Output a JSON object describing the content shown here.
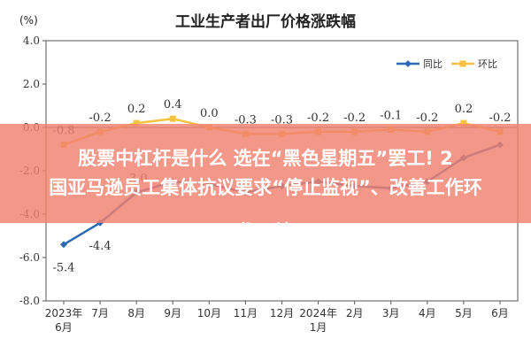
{
  "chart_data": {
    "type": "line",
    "title": "工业生产者出厂价格涨跌幅",
    "ylabel": "(%)",
    "ylim": [
      -8.0,
      4.0
    ],
    "yticks": [
      "4.0",
      "2.0",
      "0.0",
      "-2.0",
      "-4.0",
      "-6.0",
      "-8.0"
    ],
    "categories": [
      "2023年|6月",
      "7月",
      "8月",
      "9月",
      "10月",
      "11月",
      "12月",
      "2024年|1月",
      "2月",
      "3月",
      "4月",
      "5月",
      "6月"
    ],
    "series": [
      {
        "name": "同比",
        "color": "#2e6ab3",
        "values": [
          -5.4,
          -4.4,
          -3.0,
          -2.5,
          -2.6,
          -3.0,
          -2.7,
          -2.5,
          -2.7,
          -2.8,
          -2.5,
          -1.4,
          -0.8
        ],
        "labels": [
          "-5.4",
          "-4.4",
          "-3.0",
          "",
          "",
          "",
          "",
          "",
          "",
          "",
          "",
          "",
          ""
        ]
      },
      {
        "name": "环比",
        "color": "#f5c242",
        "values": [
          -0.8,
          -0.2,
          0.2,
          0.4,
          0.0,
          -0.3,
          -0.3,
          -0.2,
          -0.2,
          -0.1,
          -0.2,
          0.2,
          -0.2
        ],
        "labels": [
          "-0.8",
          "-0.2",
          "0.2",
          "0.4",
          "0.0",
          "-0.3",
          "-0.3",
          "-0.2",
          "-0.2",
          "-0.1",
          "-0.2",
          "0.2",
          "-0.2"
        ]
      }
    ],
    "legend": "top-right",
    "grid": false
  },
  "overlay": {
    "line1": "股票中杠杆是什么 选在“黑色星期五”罢工! 2",
    "line2": "国亚马逊员工集体抗议要求“停止监视”、改善工作环",
    "line3": "作环境",
    "color": "#f0806e"
  }
}
